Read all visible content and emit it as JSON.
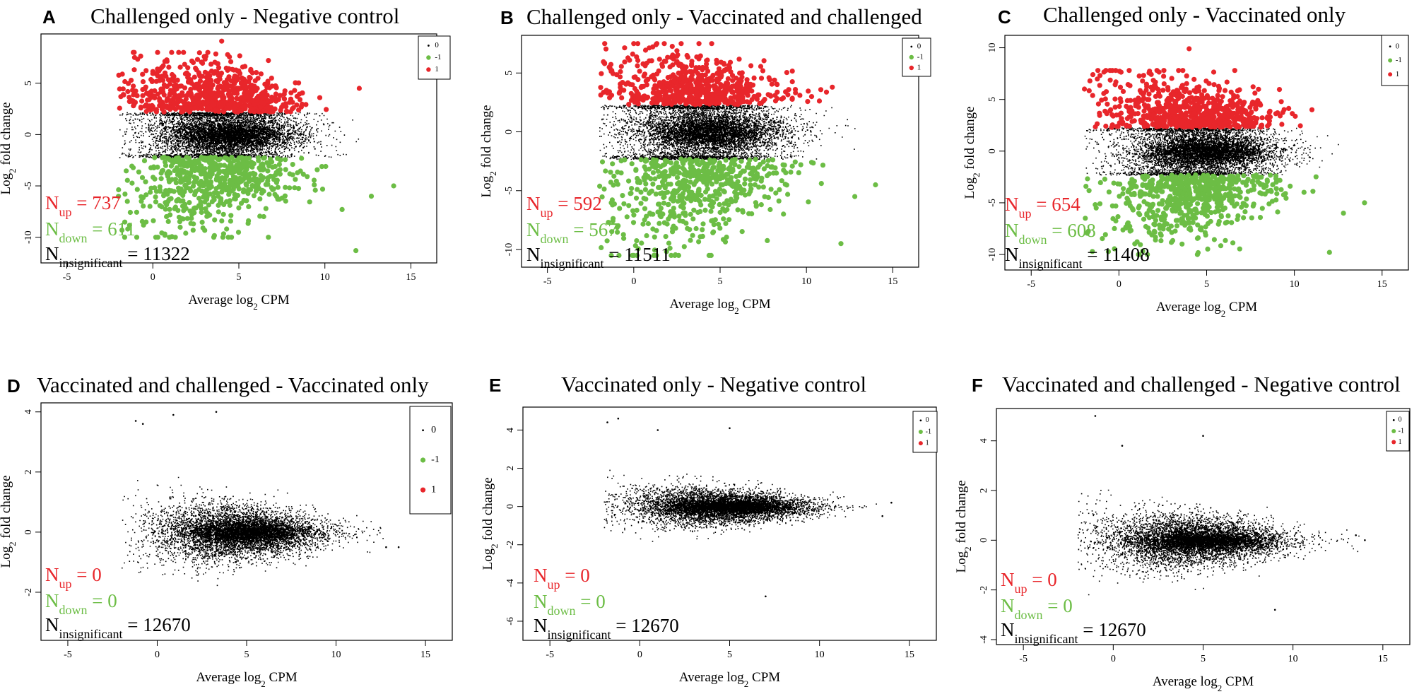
{
  "figure": {
    "type": "MA-plot grid",
    "background": "#ffffff"
  },
  "colors": {
    "up": "#e8262b",
    "down": "#6cbd45",
    "insignificant": "#000000"
  },
  "chart_data": [
    {
      "panel": "A",
      "title": "Challenged only - Negative control",
      "type": "scatter",
      "xlabel": "Average log2 CPM",
      "ylabel": "Log2 fold change",
      "xlim": [
        -6.5,
        16.5
      ],
      "ylim": [
        -12.5,
        9.8
      ],
      "xticks": [
        -5,
        0,
        5,
        10,
        15
      ],
      "yticks": [
        -10,
        -5,
        0,
        5
      ],
      "legend": {
        "position": "top-right",
        "entries": [
          {
            "label": "0",
            "color": "#000000"
          },
          {
            "label": "-1",
            "color": "#6cbd45"
          },
          {
            "label": "1",
            "color": "#e8262b"
          }
        ]
      },
      "counts": {
        "up": 737,
        "down": 611,
        "insignificant": 11322
      },
      "count_text": {
        "up_base": "N",
        "up_sub": "up",
        "up_value": " = 737",
        "down_base": "N",
        "down_sub": "down",
        "down_value": " = 611",
        "insig_base": "N",
        "insig_sub": "insignificant",
        "insig_value": " = 11322"
      },
      "distribution": {
        "center_x": 4,
        "sd_x": 2.3,
        "x_min": -2,
        "x_max": 12.5,
        "spread_y": 1.6,
        "up_threshold": 2.2,
        "down_threshold": -2.2,
        "up_max": 8,
        "down_min": -10,
        "outlier_points": [
          [
            4,
            9.1
          ],
          [
            11.8,
            -11.3
          ],
          [
            14,
            -5
          ],
          [
            12.7,
            -6
          ],
          [
            11,
            -7.3
          ],
          [
            12,
            4.5
          ]
        ]
      }
    },
    {
      "panel": "B",
      "title": "Challenged only - Vaccinated and challenged",
      "type": "scatter",
      "xlabel": "Average log2 CPM",
      "ylabel": "Log2 fold change",
      "xlim": [
        -6.5,
        16.5
      ],
      "ylim": [
        -11.5,
        8.2
      ],
      "xticks": [
        -5,
        0,
        5,
        10,
        15
      ],
      "yticks": [
        -10,
        -5,
        0,
        5
      ],
      "legend": {
        "position": "top-right",
        "entries": [
          {
            "label": "0",
            "color": "#000000"
          },
          {
            "label": "-1",
            "color": "#6cbd45"
          },
          {
            "label": "1",
            "color": "#e8262b"
          }
        ]
      },
      "counts": {
        "up": 592,
        "down": 567,
        "insignificant": 11511
      },
      "count_text": {
        "up_base": "N",
        "up_sub": "up",
        "up_value": " = 592",
        "down_base": "N",
        "down_sub": "down",
        "down_value": " = 567",
        "insig_base": "N",
        "insig_sub": "insignificant",
        "insig_value": " = 11511"
      },
      "distribution": {
        "center_x": 4,
        "sd_x": 2.4,
        "x_min": -2,
        "x_max": 13,
        "spread_y": 1.7,
        "up_threshold": 2.3,
        "down_threshold": -2.3,
        "up_max": 7.5,
        "down_min": -10.5,
        "outlier_points": [
          [
            0,
            7.5
          ],
          [
            14,
            -4.5
          ],
          [
            12.8,
            -5.5
          ],
          [
            12,
            -9.5
          ],
          [
            11.5,
            3.8
          ],
          [
            10.3,
            3
          ]
        ]
      }
    },
    {
      "panel": "C",
      "title": "Challenged only - Vaccinated only",
      "type": "scatter",
      "xlabel": "Average log2 CPM",
      "ylabel": "Log2 fold change",
      "xlim": [
        -6.5,
        16.5
      ],
      "ylim": [
        -11.5,
        11.2
      ],
      "xticks": [
        -5,
        0,
        5,
        10,
        15
      ],
      "yticks": [
        -10,
        -5,
        0,
        5,
        10
      ],
      "legend": {
        "position": "top-right",
        "entries": [
          {
            "label": "0",
            "color": "#000000"
          },
          {
            "label": "-1",
            "color": "#6cbd45"
          },
          {
            "label": "1",
            "color": "#e8262b"
          }
        ]
      },
      "counts": {
        "up": 654,
        "down": 608,
        "insignificant": 11408
      },
      "count_text": {
        "up_base": "N",
        "up_sub": "up",
        "up_value": " = 654",
        "down_base": "N",
        "down_sub": "down",
        "down_value": " = 608",
        "insig_base": "N",
        "insig_sub": "insignificant",
        "insig_value": " = 11408"
      },
      "distribution": {
        "center_x": 4.5,
        "sd_x": 2.3,
        "x_min": -2,
        "x_max": 13,
        "spread_y": 1.6,
        "up_threshold": 2.3,
        "down_threshold": -2.3,
        "up_max": 7.8,
        "down_min": -10,
        "outlier_points": [
          [
            4,
            9.9
          ],
          [
            14,
            -5
          ],
          [
            12.8,
            -6
          ],
          [
            12,
            -9.8
          ],
          [
            11,
            4
          ]
        ]
      }
    },
    {
      "panel": "D",
      "title": "Vaccinated and challenged - Vaccinated only",
      "type": "scatter",
      "xlabel": "Average log2 CPM",
      "ylabel": "Log2 fold change",
      "xlim": [
        -6.5,
        16.5
      ],
      "ylim": [
        -3.6,
        4.3
      ],
      "xticks": [
        -5,
        0,
        5,
        10,
        15
      ],
      "yticks": [
        -2,
        0,
        2,
        4
      ],
      "legend": {
        "position": "top-right",
        "entries": [
          {
            "label": "0",
            "color": "#000000"
          },
          {
            "label": "-1",
            "color": "#6cbd45"
          },
          {
            "label": "1",
            "color": "#e8262b"
          }
        ]
      },
      "counts": {
        "up": 0,
        "down": 0,
        "insignificant": 12670
      },
      "count_text": {
        "up_base": "N",
        "up_sub": "up",
        "up_value": " = 0",
        "down_base": "N",
        "down_sub": "down",
        "down_value": " = 0",
        "insig_base": "N",
        "insig_sub": "insignificant",
        "insig_value": " = 12670"
      },
      "distribution": {
        "center_x": 4.5,
        "sd_x": 2.4,
        "x_min": -2,
        "x_max": 13,
        "spread_y": 0.45,
        "up_threshold": 99,
        "down_threshold": -99,
        "up_max": 4,
        "down_min": -3,
        "outlier_points": [
          [
            3.3,
            4
          ],
          [
            -1.2,
            3.7
          ],
          [
            -0.8,
            3.6
          ],
          [
            0.9,
            3.9
          ],
          [
            13.5,
            -0.5
          ],
          [
            12.8,
            -0.5
          ]
        ]
      }
    },
    {
      "panel": "E",
      "title": "Vaccinated only - Negative control",
      "type": "scatter",
      "xlabel": "Average log2 CPM",
      "ylabel": "Log2 fold change",
      "xlim": [
        -6.5,
        16.5
      ],
      "ylim": [
        -7,
        5.2
      ],
      "xticks": [
        -5,
        0,
        5,
        10,
        15
      ],
      "yticks": [
        -6,
        -4,
        -2,
        0,
        2,
        4
      ],
      "legend": {
        "position": "top-right",
        "entries": [
          {
            "label": "0",
            "color": "#000000"
          },
          {
            "label": "-1",
            "color": "#6cbd45"
          },
          {
            "label": "1",
            "color": "#e8262b"
          }
        ]
      },
      "counts": {
        "up": 0,
        "down": 0,
        "insignificant": 12670
      },
      "count_text": {
        "up_base": "N",
        "up_sub": "up",
        "up_value": " = 0",
        "down_base": "N",
        "down_sub": "down",
        "down_value": " = 0",
        "insig_base": "N",
        "insig_sub": "insignificant",
        "insig_value": " = 12670"
      },
      "distribution": {
        "center_x": 4.5,
        "sd_x": 2.5,
        "x_min": -2,
        "x_max": 13.5,
        "spread_y": 0.45,
        "up_threshold": 99,
        "down_threshold": -99,
        "up_max": 4.6,
        "down_min": -5,
        "outlier_points": [
          [
            -1.8,
            4.4
          ],
          [
            -1.2,
            4.6
          ],
          [
            5,
            4.1
          ],
          [
            1,
            4
          ],
          [
            7,
            -4.7
          ],
          [
            14,
            0.2
          ],
          [
            13.5,
            -0.5
          ]
        ]
      }
    },
    {
      "panel": "F",
      "title": "Vaccinated and challenged - Negative control",
      "type": "scatter",
      "xlabel": "Average log2 CPM",
      "ylabel": "Log2 fold change",
      "xlim": [
        -6.5,
        16.5
      ],
      "ylim": [
        -4.2,
        5.3
      ],
      "xticks": [
        -5,
        0,
        5,
        10,
        15
      ],
      "yticks": [
        -4,
        -2,
        0,
        2,
        4
      ],
      "legend": {
        "position": "top-right",
        "entries": [
          {
            "label": "0",
            "color": "#000000"
          },
          {
            "label": "-1",
            "color": "#6cbd45"
          },
          {
            "label": "1",
            "color": "#e8262b"
          }
        ]
      },
      "counts": {
        "up": 0,
        "down": 0,
        "insignificant": 12670
      },
      "count_text": {
        "up_base": "N",
        "up_sub": "up",
        "up_value": " = 0",
        "down_base": "N",
        "down_sub": "down",
        "down_value": " = 0",
        "insig_base": "N",
        "insig_sub": "insignificant",
        "insig_value": " = 12670"
      },
      "distribution": {
        "center_x": 4.5,
        "sd_x": 2.5,
        "x_min": -2,
        "x_max": 13.8,
        "spread_y": 0.5,
        "up_threshold": 99,
        "down_threshold": -99,
        "up_max": 5,
        "down_min": -4,
        "outlier_points": [
          [
            -1,
            5
          ],
          [
            0.5,
            3.8
          ],
          [
            5,
            4.2
          ],
          [
            14,
            0
          ],
          [
            13.5,
            0.2
          ],
          [
            9,
            -2.8
          ]
        ]
      }
    }
  ]
}
